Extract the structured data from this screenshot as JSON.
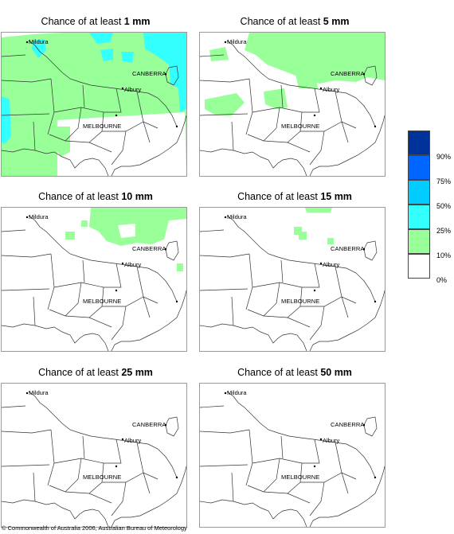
{
  "panels": [
    {
      "prefix": "Chance of at least ",
      "amount": "1 mm"
    },
    {
      "prefix": "Chance of at least ",
      "amount": "5 mm"
    },
    {
      "prefix": "Chance of at least ",
      "amount": "10 mm"
    },
    {
      "prefix": "Chance of at least ",
      "amount": "15 mm"
    },
    {
      "prefix": "Chance of at least ",
      "amount": "25 mm"
    },
    {
      "prefix": "Chance of at least ",
      "amount": "50 mm"
    }
  ],
  "places": {
    "mildura": "Mildura",
    "canberra": "CANBERRA",
    "albury": "Albury",
    "melbourne": "MELBOURNE"
  },
  "legend": {
    "labels": [
      "90%",
      "75%",
      "50%",
      "25%",
      "10%",
      "0%"
    ],
    "colors": [
      "#003399",
      "#0066ff",
      "#00ccff",
      "#33ffff",
      "#99ff99",
      "#ffffff"
    ]
  },
  "colors": {
    "green": "#99ff99",
    "cyan": "#33ffff",
    "sky": "#00ccff",
    "border": "#333333"
  },
  "copyright": "© Commonwealth of Australia 2006, Australian Bureau of Meteorology"
}
